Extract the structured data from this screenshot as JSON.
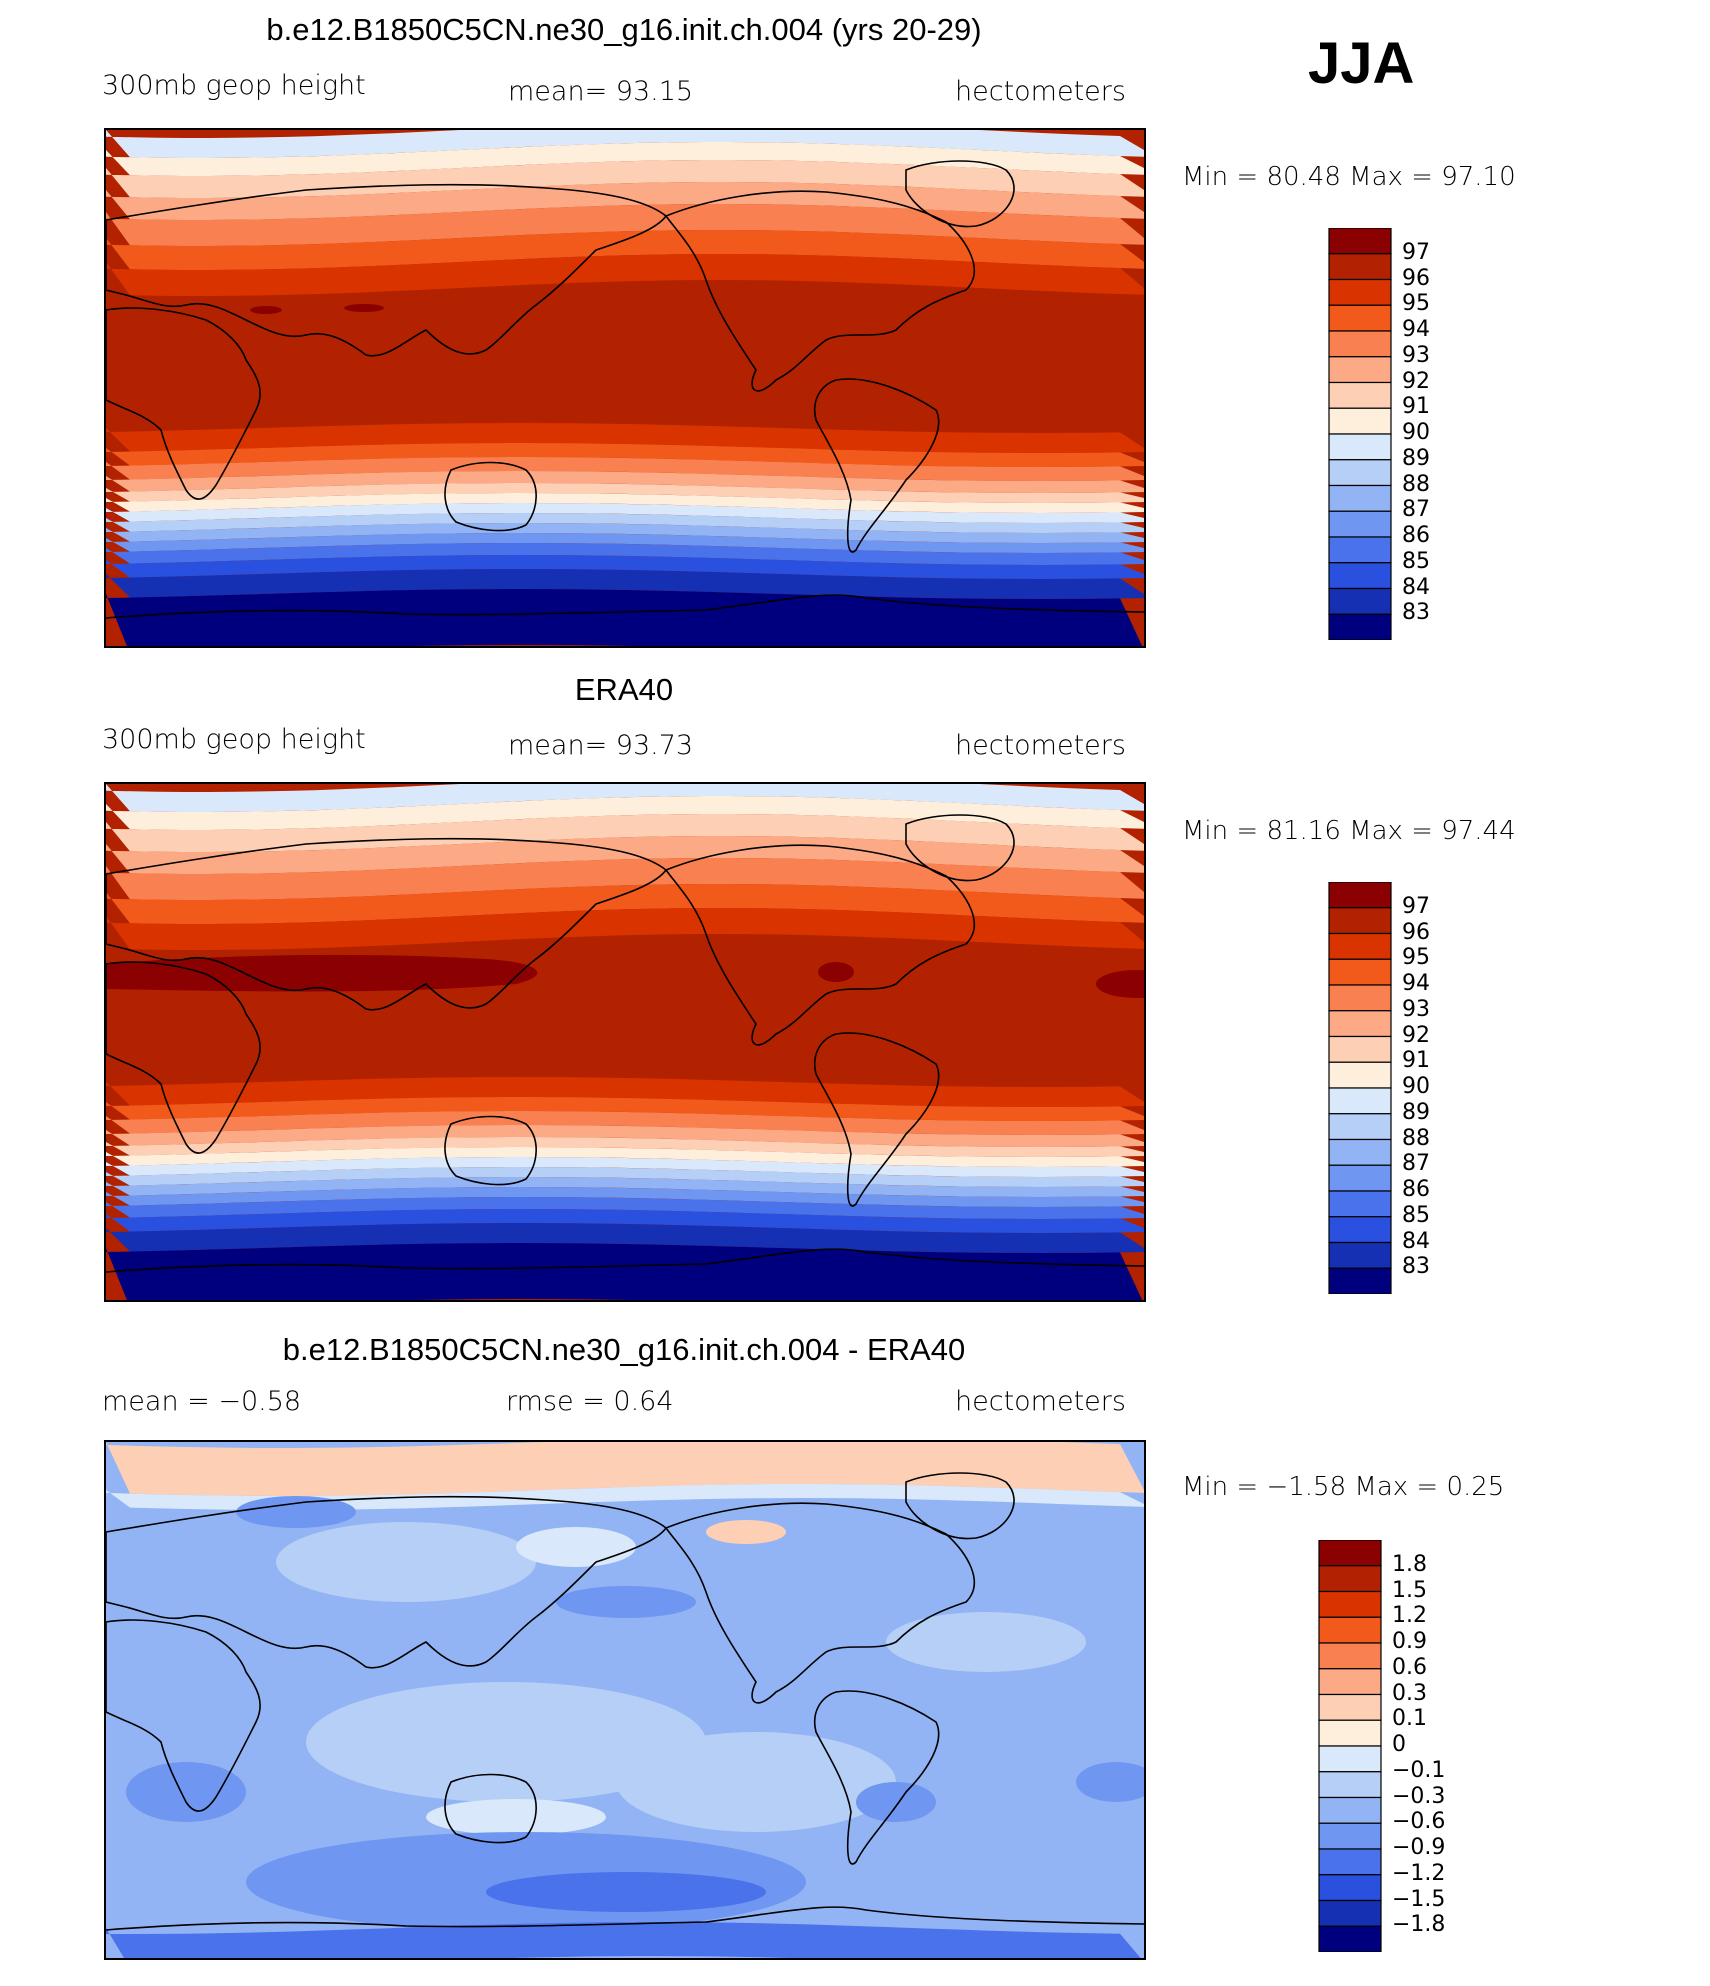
{
  "season": "JJA",
  "panels": [
    {
      "id": "model",
      "title": "b.e12.B1850C5CN.ne30_g16.init.ch.004 (yrs 20-29)",
      "left_label": "300mb geop height",
      "center_label": "mean=   93.15",
      "right_label": "hectometers",
      "minmax": "Min =   80.48 Max =   97.10",
      "levels": [
        "97",
        "96",
        "95",
        "94",
        "93",
        "92",
        "91",
        "90",
        "89",
        "88",
        "87",
        "86",
        "85",
        "84",
        "83"
      ],
      "colors": [
        "#8b0000",
        "#b22200",
        "#d93300",
        "#f25a1c",
        "#f98050",
        "#fcaa85",
        "#fdd0b5",
        "#feeedc",
        "#d9e9fb",
        "#b6cff7",
        "#93b4f4",
        "#6f96f0",
        "#4a72eb",
        "#2a50e0",
        "#1530b3",
        "#00007f"
      ]
    },
    {
      "id": "obs",
      "title": "ERA40",
      "left_label": "300mb geop height",
      "center_label": "mean=   93.73",
      "right_label": "hectometers",
      "minmax": "Min =   81.16 Max =   97.44",
      "levels": [
        "97",
        "96",
        "95",
        "94",
        "93",
        "92",
        "91",
        "90",
        "89",
        "88",
        "87",
        "86",
        "85",
        "84",
        "83"
      ],
      "colors": [
        "#8b0000",
        "#b22200",
        "#d93300",
        "#f25a1c",
        "#f98050",
        "#fcaa85",
        "#fdd0b5",
        "#feeedc",
        "#d9e9fb",
        "#b6cff7",
        "#93b4f4",
        "#6f96f0",
        "#4a72eb",
        "#2a50e0",
        "#1530b3",
        "#00007f"
      ]
    },
    {
      "id": "diff",
      "title": "b.e12.B1850C5CN.ne30_g16.init.ch.004 - ERA40",
      "left_label": "mean =   −0.58",
      "center_label": "rmse =    0.64",
      "right_label": "hectometers",
      "minmax": "Min =  −1.58 Max =    0.25",
      "levels": [
        "1.8",
        "1.5",
        "1.2",
        "0.9",
        "0.6",
        "0.3",
        "0.1",
        "0",
        "−0.1",
        "−0.3",
        "−0.6",
        "−0.9",
        "−1.2",
        "−1.5",
        "−1.8"
      ],
      "colors": [
        "#8b0000",
        "#b22200",
        "#d93300",
        "#f25a1c",
        "#f98050",
        "#fcaa85",
        "#fdd0b5",
        "#feeedc",
        "#d9e9fb",
        "#b6cff7",
        "#93b4f4",
        "#6f96f0",
        "#4a72eb",
        "#2a50e0",
        "#1530b3",
        "#00007f"
      ]
    }
  ]
}
